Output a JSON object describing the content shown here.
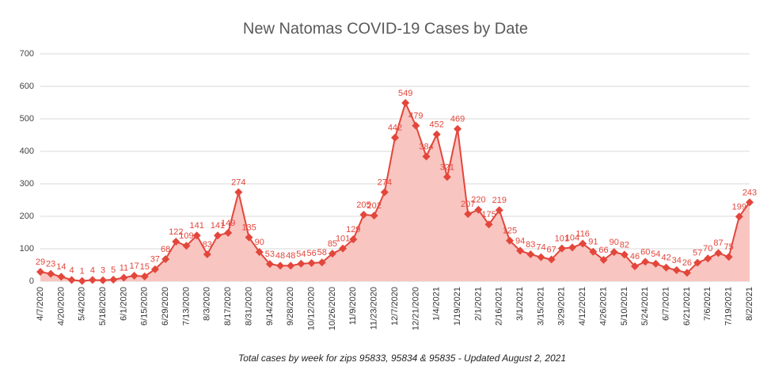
{
  "chart_data": {
    "type": "line",
    "title": "New Natomas COVID-19 Cases by Date",
    "subtitle": "Total cases by week for zips 95833, 95834 & 95835 - Updated August 2, 2021",
    "categories": [
      "4/7/2020",
      null,
      "4/20/2020",
      null,
      "5/4/2020",
      null,
      "5/18/2020",
      null,
      "6/1/2020",
      null,
      "6/15/2020",
      null,
      "6/29/2020",
      null,
      "7/13/2020",
      null,
      "8/3/2020",
      null,
      "8/17/2020",
      null,
      "8/31/2020",
      null,
      "9/14/2020",
      null,
      "9/28/2020",
      null,
      "10/12/2020",
      null,
      "10/26/2020",
      null,
      "11/9/2020",
      null,
      "11/23/2020",
      null,
      "12/7/2020",
      null,
      "12/21/2020",
      null,
      "1/4/2021",
      null,
      "1/19/2021",
      null,
      "2/1/2021",
      null,
      "2/16/2021",
      null,
      "3/1/2021",
      null,
      "3/15/2021",
      null,
      "3/29/2021",
      null,
      "4/12/2021",
      null,
      "4/26/2021",
      null,
      "5/10/2021",
      null,
      "5/24/2021",
      null,
      "6/7/2021",
      null,
      "6/21/2021",
      null,
      "7/6/2021",
      null,
      "7/19/2021",
      null,
      "8/2/2021"
    ],
    "series": [
      {
        "name": "Cases",
        "color": "#e3463b",
        "fill": "#f8c5c1",
        "values": [
          29,
          23,
          14,
          4,
          1,
          4,
          3,
          5,
          11,
          17,
          15,
          37,
          68,
          122,
          109,
          141,
          83,
          141,
          149,
          274,
          135,
          90,
          53,
          48,
          48,
          54,
          56,
          58,
          85,
          101,
          129,
          205,
          202,
          274,
          442,
          549,
          479,
          384,
          452,
          321,
          469,
          207,
          220,
          175,
          219,
          125,
          94,
          83,
          74,
          67,
          101,
          104,
          116,
          91,
          66,
          90,
          82,
          46,
          60,
          54,
          42,
          34,
          26,
          57,
          70,
          87,
          75,
          199,
          243
        ]
      }
    ],
    "ylim": [
      0,
      700
    ],
    "yticks": [
      0,
      100,
      200,
      300,
      400,
      500,
      600,
      700
    ],
    "grid": true
  }
}
